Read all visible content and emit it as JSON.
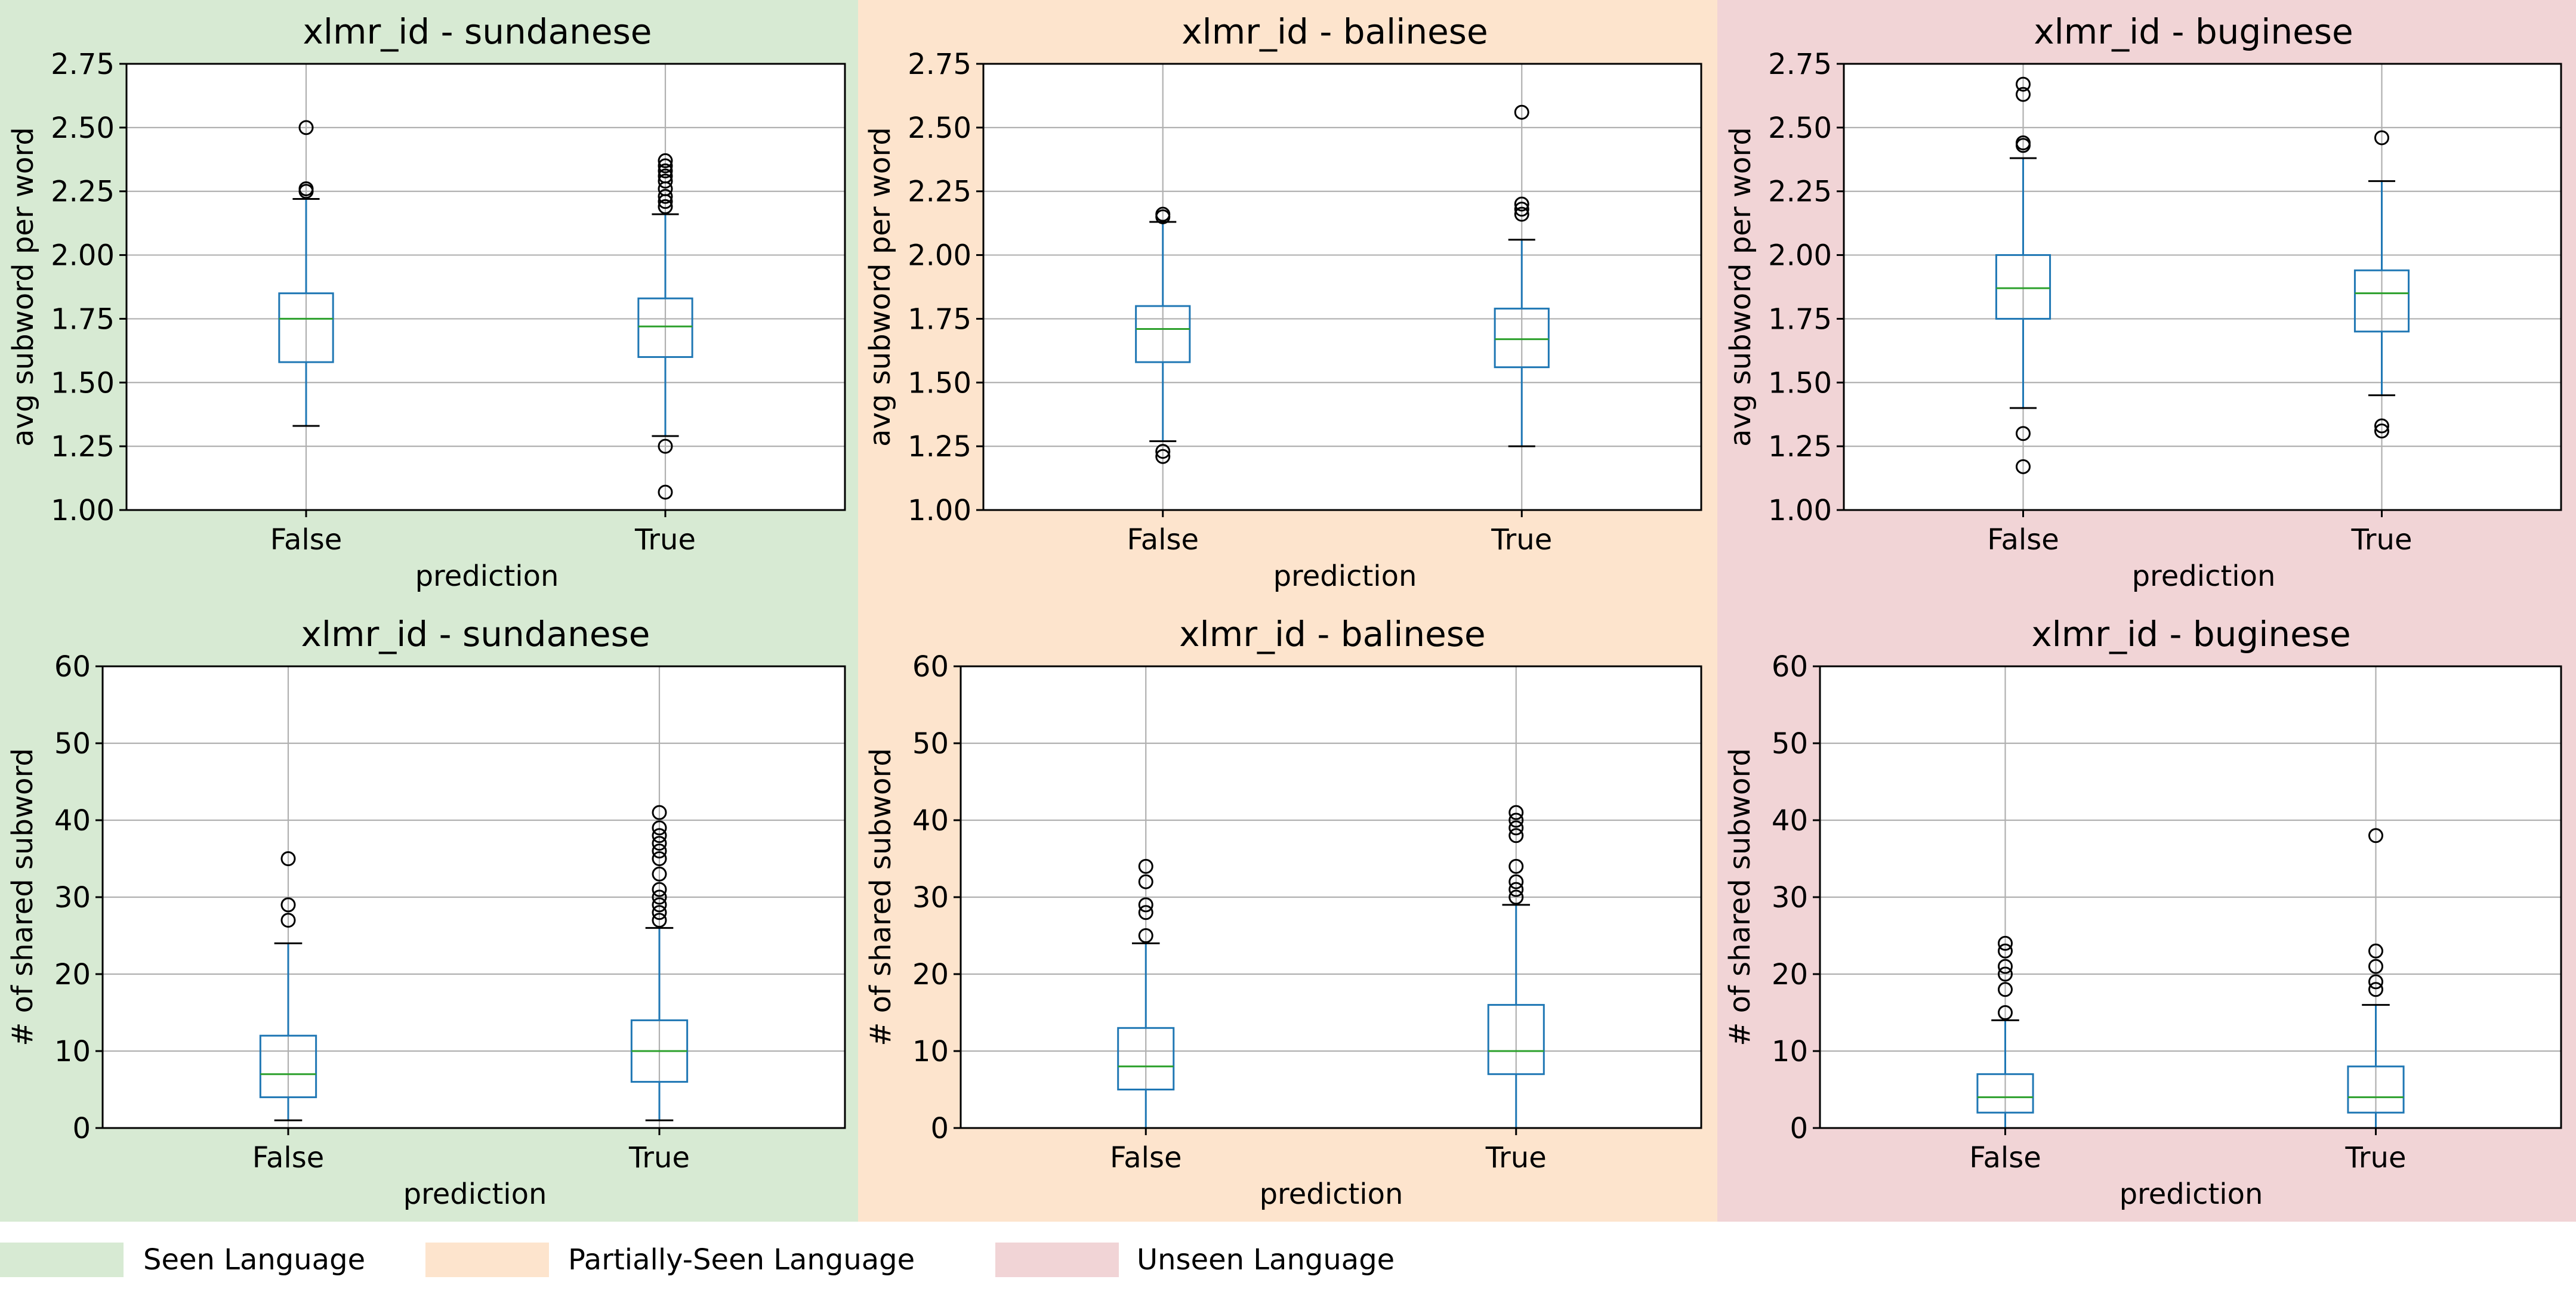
{
  "figure": {
    "legend": [
      {
        "label": "Seen Language",
        "color": "#d7ead3"
      },
      {
        "label": "Partially-Seen Language",
        "color": "#fde4cd"
      },
      {
        "label": "Unseen Language",
        "color": "#f1d4d6"
      }
    ]
  },
  "chart_data": [
    {
      "type": "box",
      "title": "xlmr_id - sundanese",
      "xlabel": "prediction",
      "ylabel": "avg subword per word",
      "categories": [
        "False",
        "True"
      ],
      "ylim": [
        1.0,
        2.75
      ],
      "yticks": [
        "1.00",
        "1.25",
        "1.50",
        "1.75",
        "2.00",
        "2.25",
        "2.50",
        "2.75"
      ],
      "grid": true,
      "group": "Seen Language",
      "boxes": [
        {
          "whisker_low": 1.33,
          "q1": 1.58,
          "median": 1.75,
          "q3": 1.85,
          "whisker_high": 2.22,
          "outliers": [
            2.25,
            2.26,
            2.5
          ]
        },
        {
          "whisker_low": 1.29,
          "q1": 1.6,
          "median": 1.72,
          "q3": 1.83,
          "whisker_high": 2.16,
          "outliers": [
            1.07,
            1.25,
            2.19,
            2.21,
            2.23,
            2.26,
            2.29,
            2.31,
            2.33,
            2.35,
            2.37
          ]
        }
      ]
    },
    {
      "type": "box",
      "title": "xlmr_id - balinese",
      "xlabel": "prediction",
      "ylabel": "avg subword per word",
      "categories": [
        "False",
        "True"
      ],
      "ylim": [
        1.0,
        2.75
      ],
      "yticks": [
        "1.00",
        "1.25",
        "1.50",
        "1.75",
        "2.00",
        "2.25",
        "2.50",
        "2.75"
      ],
      "grid": true,
      "group": "Partially-Seen Language",
      "boxes": [
        {
          "whisker_low": 1.27,
          "q1": 1.58,
          "median": 1.71,
          "q3": 1.8,
          "whisker_high": 2.13,
          "outliers": [
            1.21,
            1.23,
            2.15,
            2.16
          ]
        },
        {
          "whisker_low": 1.25,
          "q1": 1.56,
          "median": 1.67,
          "q3": 1.79,
          "whisker_high": 2.06,
          "outliers": [
            2.16,
            2.18,
            2.2,
            2.56
          ]
        }
      ]
    },
    {
      "type": "box",
      "title": "xlmr_id - buginese",
      "xlabel": "prediction",
      "ylabel": "avg subword per word",
      "categories": [
        "False",
        "True"
      ],
      "ylim": [
        1.0,
        2.75
      ],
      "yticks": [
        "1.00",
        "1.25",
        "1.50",
        "1.75",
        "2.00",
        "2.25",
        "2.50",
        "2.75"
      ],
      "grid": true,
      "group": "Unseen Language",
      "boxes": [
        {
          "whisker_low": 1.4,
          "q1": 1.75,
          "median": 1.87,
          "q3": 2.0,
          "whisker_high": 2.38,
          "outliers": [
            1.17,
            1.3,
            2.43,
            2.44,
            2.63,
            2.67
          ]
        },
        {
          "whisker_low": 1.45,
          "q1": 1.7,
          "median": 1.85,
          "q3": 1.94,
          "whisker_high": 2.29,
          "outliers": [
            1.31,
            1.33,
            2.46
          ]
        }
      ]
    },
    {
      "type": "box",
      "title": "xlmr_id - sundanese",
      "xlabel": "prediction",
      "ylabel": "# of shared subword",
      "categories": [
        "False",
        "True"
      ],
      "ylim": [
        0,
        60
      ],
      "yticks": [
        "0",
        "10",
        "20",
        "30",
        "40",
        "50",
        "60"
      ],
      "grid": true,
      "group": "Seen Language",
      "boxes": [
        {
          "whisker_low": 1,
          "q1": 4,
          "median": 7,
          "q3": 12,
          "whisker_high": 24,
          "outliers": [
            27,
            29,
            35
          ]
        },
        {
          "whisker_low": 1,
          "q1": 6,
          "median": 10,
          "q3": 14,
          "whisker_high": 26,
          "outliers": [
            27,
            28,
            29,
            30,
            31,
            33,
            35,
            36,
            37,
            38,
            39,
            41
          ]
        }
      ]
    },
    {
      "type": "box",
      "title": "xlmr_id - balinese",
      "xlabel": "prediction",
      "ylabel": "# of shared subword",
      "categories": [
        "False",
        "True"
      ],
      "ylim": [
        0,
        60
      ],
      "yticks": [
        "0",
        "10",
        "20",
        "30",
        "40",
        "50",
        "60"
      ],
      "grid": true,
      "group": "Partially-Seen Language",
      "boxes": [
        {
          "whisker_low": 0,
          "q1": 5,
          "median": 8,
          "q3": 13,
          "whisker_high": 24,
          "outliers": [
            25,
            28,
            29,
            32,
            34
          ]
        },
        {
          "whisker_low": 0,
          "q1": 7,
          "median": 10,
          "q3": 16,
          "whisker_high": 29,
          "outliers": [
            30,
            31,
            32,
            34,
            38,
            39,
            40,
            41
          ]
        }
      ]
    },
    {
      "type": "box",
      "title": "xlmr_id - buginese",
      "xlabel": "prediction",
      "ylabel": "# of shared subword",
      "categories": [
        "False",
        "True"
      ],
      "ylim": [
        0,
        60
      ],
      "yticks": [
        "0",
        "10",
        "20",
        "30",
        "40",
        "50",
        "60"
      ],
      "grid": true,
      "group": "Unseen Language",
      "boxes": [
        {
          "whisker_low": 0,
          "q1": 2,
          "median": 4,
          "q3": 7,
          "whisker_high": 14,
          "outliers": [
            15,
            18,
            20,
            21,
            23,
            24
          ]
        },
        {
          "whisker_low": 0,
          "q1": 2,
          "median": 4,
          "q3": 8,
          "whisker_high": 16,
          "outliers": [
            18,
            19,
            21,
            23,
            38
          ]
        }
      ]
    }
  ]
}
